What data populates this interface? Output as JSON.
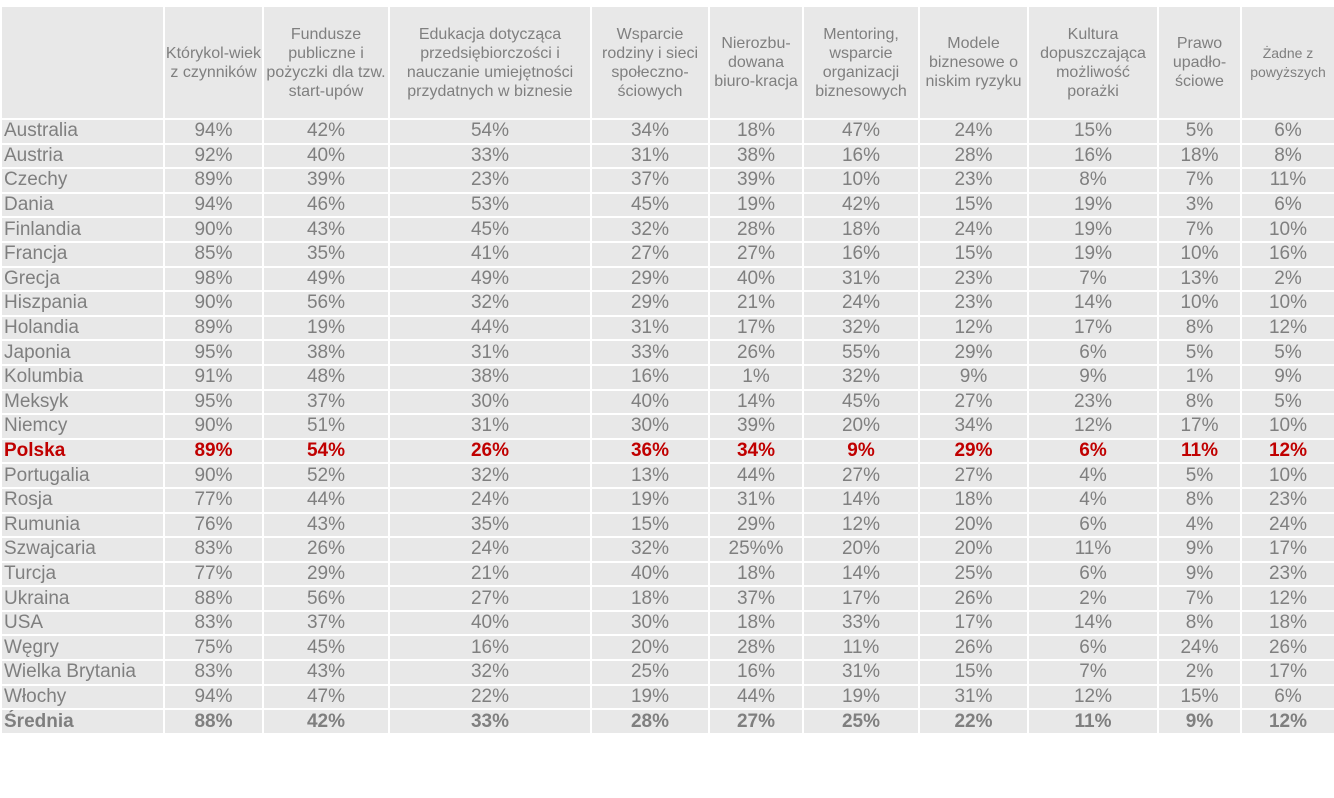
{
  "headers": [
    "",
    "Którykol-wiek z czynników",
    "Fundusze publiczne i pożyczki dla tzw. start-upów",
    "Edukacja dotycząca przedsiębiorczości i nauczanie umiejętności przydatnych w biznesie",
    "Wsparcie rodziny i sieci społeczno-ściowych",
    "Nierozbu-dowana biuro-kracja",
    "Mentoring, wsparcie organizacji biznesowych",
    "Modele biznesowe o niskim ryzyku",
    "Kultura dopuszczająca możliwość porażki",
    "Prawo upadło-ściowe",
    "Żadne z powyższych"
  ],
  "highlight_color": "#c00000",
  "rows": [
    [
      "Australia",
      "94%",
      "42%",
      "54%",
      "34%",
      "18%",
      "47%",
      "24%",
      "15%",
      "5%",
      "6%"
    ],
    [
      "Austria",
      "92%",
      "40%",
      "33%",
      "31%",
      "38%",
      "16%",
      "28%",
      "16%",
      "18%",
      "8%"
    ],
    [
      "Czechy",
      "89%",
      "39%",
      "23%",
      "37%",
      "39%",
      "10%",
      "23%",
      "8%",
      "7%",
      "11%"
    ],
    [
      "Dania",
      "94%",
      "46%",
      "53%",
      "45%",
      "19%",
      "42%",
      "15%",
      "19%",
      "3%",
      "6%"
    ],
    [
      "Finlandia",
      "90%",
      "43%",
      "45%",
      "32%",
      "28%",
      "18%",
      "24%",
      "19%",
      "7%",
      "10%"
    ],
    [
      "Francja",
      "85%",
      "35%",
      "41%",
      "27%",
      "27%",
      "16%",
      "15%",
      "19%",
      "10%",
      "16%"
    ],
    [
      "Grecja",
      "98%",
      "49%",
      "49%",
      "29%",
      "40%",
      "31%",
      "23%",
      "7%",
      "13%",
      "2%"
    ],
    [
      "Hiszpania",
      "90%",
      "56%",
      "32%",
      "29%",
      "21%",
      "24%",
      "23%",
      "14%",
      "10%",
      "10%"
    ],
    [
      "Holandia",
      "89%",
      "19%",
      "44%",
      "31%",
      "17%",
      "32%",
      "12%",
      "17%",
      "8%",
      "12%"
    ],
    [
      "Japonia",
      "95%",
      "38%",
      "31%",
      "33%",
      "26%",
      "55%",
      "29%",
      "6%",
      "5%",
      "5%"
    ],
    [
      "Kolumbia",
      "91%",
      "48%",
      "38%",
      "16%",
      "1%",
      "32%",
      "9%",
      "9%",
      "1%",
      "9%"
    ],
    [
      "Meksyk",
      "95%",
      "37%",
      "30%",
      "40%",
      "14%",
      "45%",
      "27%",
      "23%",
      "8%",
      "5%"
    ],
    [
      "Niemcy",
      "90%",
      "51%",
      "31%",
      "30%",
      "39%",
      "20%",
      "34%",
      "12%",
      "17%",
      "10%"
    ],
    [
      "Polska",
      "89%",
      "54%",
      "26%",
      "36%",
      "34%",
      "9%",
      "29%",
      "6%",
      "11%",
      "12%"
    ],
    [
      "Portugalia",
      "90%",
      "52%",
      "32%",
      "13%",
      "44%",
      "27%",
      "27%",
      "4%",
      "5%",
      "10%"
    ],
    [
      "Rosja",
      "77%",
      "44%",
      "24%",
      "19%",
      "31%",
      "14%",
      "18%",
      "4%",
      "8%",
      "23%"
    ],
    [
      "Rumunia",
      "76%",
      "43%",
      "35%",
      "15%",
      "29%",
      "12%",
      "20%",
      "6%",
      "4%",
      "24%"
    ],
    [
      "Szwajcaria",
      "83%",
      "26%",
      "24%",
      "32%",
      "25%%",
      "20%",
      "20%",
      "11%",
      "9%",
      "17%"
    ],
    [
      "Turcja",
      "77%",
      "29%",
      "21%",
      "40%",
      "18%",
      "14%",
      "25%",
      "6%",
      "9%",
      "23%"
    ],
    [
      "Ukraina",
      "88%",
      "56%",
      "27%",
      "18%",
      "37%",
      "17%",
      "26%",
      "2%",
      "7%",
      "12%"
    ],
    [
      "USA",
      "83%",
      "37%",
      "40%",
      "30%",
      "18%",
      "33%",
      "17%",
      "14%",
      "8%",
      "18%"
    ],
    [
      "Węgry",
      "75%",
      "45%",
      "16%",
      "20%",
      "28%",
      "11%",
      "26%",
      "6%",
      "24%",
      "26%"
    ],
    [
      "Wielka Brytania",
      "83%",
      "43%",
      "32%",
      "25%",
      "16%",
      "31%",
      "15%",
      "7%",
      "2%",
      "17%"
    ],
    [
      "Włochy",
      "94%",
      "47%",
      "22%",
      "19%",
      "44%",
      "19%",
      "31%",
      "12%",
      "15%",
      "6%"
    ],
    [
      "Średnia",
      "88%",
      "42%",
      "33%",
      "28%",
      "27%",
      "25%",
      "22%",
      "11%",
      "9%",
      "12%"
    ]
  ]
}
